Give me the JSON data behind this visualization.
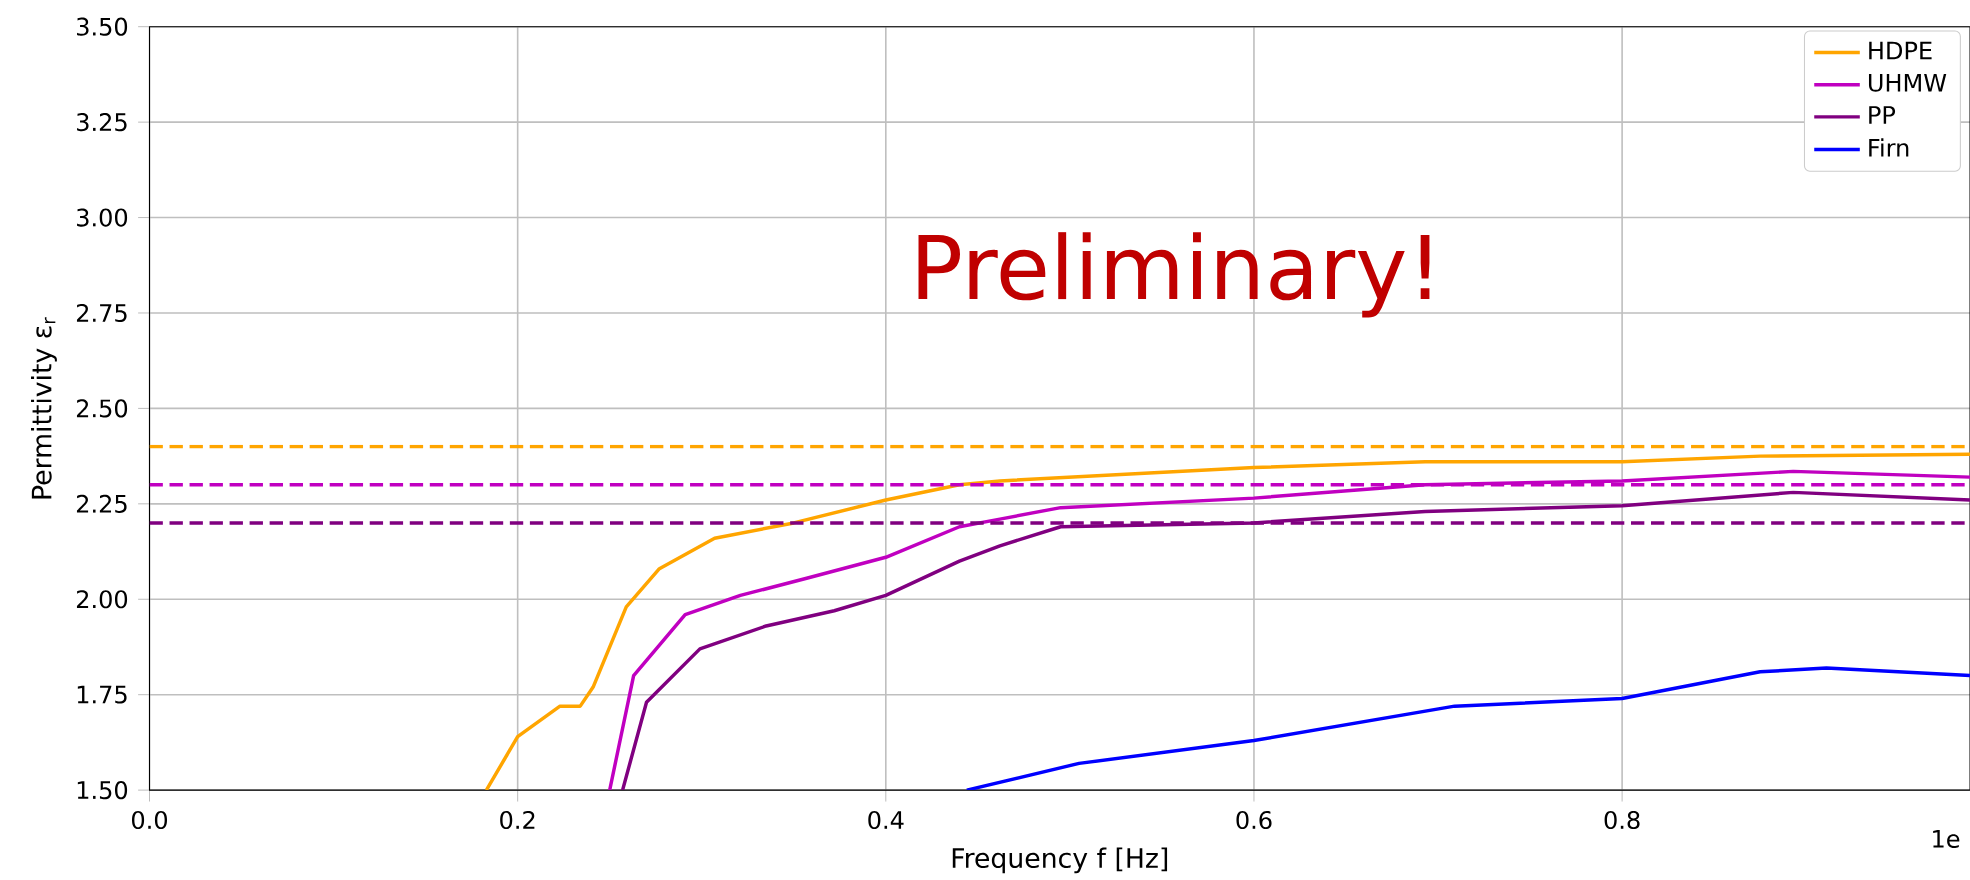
{
  "chart_data": {
    "type": "line",
    "xlabel": "Frequency f [Hz]",
    "ylabel": "Permittivity ε$_{r}$",
    "annotations": [
      "Preliminary!",
      "1e"
    ],
    "xlim": [
      0,
      0.989
    ],
    "ylim": [
      1.5,
      3.5
    ],
    "xticks": [
      {
        "value": 0,
        "label": "0.0"
      },
      {
        "value": 0.2,
        "label": "0.2"
      },
      {
        "value": 0.4,
        "label": "0.4"
      },
      {
        "value": 0.6,
        "label": "0.6"
      },
      {
        "value": 0.8,
        "label": "0.8"
      }
    ],
    "yticks": [
      {
        "value": 1.5,
        "label": "1.50"
      },
      {
        "value": 1.75,
        "label": "1.75"
      },
      {
        "value": 2.0,
        "label": "2.00"
      },
      {
        "value": 2.25,
        "label": "2.25"
      },
      {
        "value": 2.5,
        "label": "2.50"
      },
      {
        "value": 2.75,
        "label": "2.75"
      },
      {
        "value": 3.0,
        "label": "3.00"
      },
      {
        "value": 3.25,
        "label": "3.25"
      },
      {
        "value": 3.5,
        "label": "3.50"
      }
    ],
    "grid": true,
    "legend": "top right",
    "line_style": "solid",
    "series": [
      {
        "name": "HDPE",
        "color": "#ffa500",
        "x": [
          0.183,
          0.2,
          0.223,
          0.234,
          0.241,
          0.259,
          0.277,
          0.307,
          0.35,
          0.4,
          0.44,
          0.462,
          0.6,
          0.693,
          0.8,
          0.875,
          0.989
        ],
        "values": [
          1.5,
          1.64,
          1.72,
          1.72,
          1.77,
          1.98,
          2.08,
          2.16,
          2.2,
          2.26,
          2.3,
          2.31,
          2.345,
          2.36,
          2.36,
          2.375,
          2.38
        ]
      },
      {
        "name": "UHMW",
        "color": "#c000c0",
        "x": [
          0.25,
          0.263,
          0.291,
          0.321,
          0.357,
          0.4,
          0.44,
          0.462,
          0.495,
          0.6,
          0.693,
          0.8,
          0.893,
          0.989
        ],
        "values": [
          1.5,
          1.8,
          1.96,
          2.01,
          2.055,
          2.11,
          2.19,
          2.21,
          2.24,
          2.265,
          2.3,
          2.31,
          2.335,
          2.32
        ]
      },
      {
        "name": "PP",
        "color": "#800080",
        "x": [
          0.257,
          0.27,
          0.299,
          0.335,
          0.372,
          0.4,
          0.44,
          0.462,
          0.495,
          0.6,
          0.693,
          0.8,
          0.893,
          0.989
        ],
        "values": [
          1.5,
          1.73,
          1.87,
          1.93,
          1.97,
          2.01,
          2.1,
          2.14,
          2.19,
          2.2,
          2.23,
          2.245,
          2.28,
          2.26
        ]
      },
      {
        "name": "Firn",
        "color": "#0000ff",
        "x": [
          0.444,
          0.505,
          0.6,
          0.709,
          0.8,
          0.875,
          0.911,
          0.989
        ],
        "values": [
          1.5,
          1.57,
          1.63,
          1.72,
          1.74,
          1.81,
          1.82,
          1.8
        ]
      }
    ],
    "ref_lines": [
      {
        "axis": "y",
        "value": 2.4,
        "color": "#ffa500",
        "line_style": "dashed"
      },
      {
        "axis": "y",
        "value": 2.3,
        "color": "#c000c0",
        "line_style": "dashed"
      },
      {
        "axis": "y",
        "value": 2.2,
        "color": "#800080",
        "line_style": "dashed"
      }
    ]
  }
}
